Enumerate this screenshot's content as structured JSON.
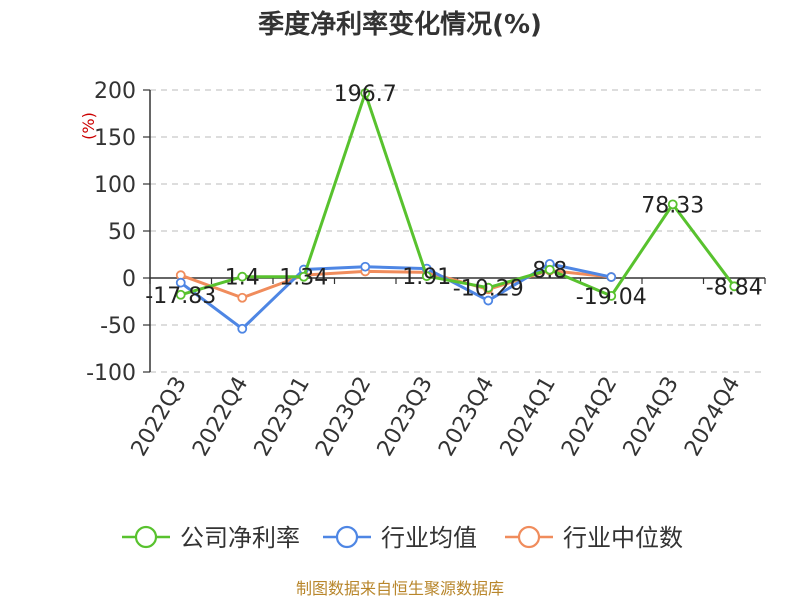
{
  "chart_data": {
    "type": "line",
    "title": "季度净利率变化情况(%)",
    "ylabel": "(%)",
    "categories": [
      "2022Q3",
      "2022Q4",
      "2023Q1",
      "2023Q2",
      "2023Q3",
      "2023Q4",
      "2024Q1",
      "2024Q2",
      "2024Q3",
      "2024Q4"
    ],
    "ylim": [
      -100,
      200
    ],
    "yticks": [
      200,
      150,
      100,
      50,
      0,
      -50,
      -100
    ],
    "grid": true,
    "legend_position": "bottom",
    "series": [
      {
        "name": "公司净利率",
        "color": "#58c22e",
        "values": [
          -17.83,
          1.4,
          1.34,
          196.7,
          1.91,
          -10.29,
          8.8,
          -19.04,
          78.33,
          -8.84
        ],
        "labels": [
          "-17.83",
          "1.4",
          "1.34",
          "196.7",
          "1.91",
          "-10.29",
          "8.8",
          "-19.04",
          "78.33",
          "-8.84"
        ]
      },
      {
        "name": "行业均值",
        "color": "#4e86e4",
        "values": [
          -5,
          -54,
          9,
          12,
          10,
          -24,
          15,
          1,
          null,
          null
        ]
      },
      {
        "name": "行业中位数",
        "color": "#f08c5c",
        "values": [
          3,
          -21,
          3,
          7,
          6,
          -12,
          8,
          1,
          null,
          null
        ]
      }
    ]
  },
  "footer": {
    "source": "制图数据来自恒生聚源数据库"
  }
}
